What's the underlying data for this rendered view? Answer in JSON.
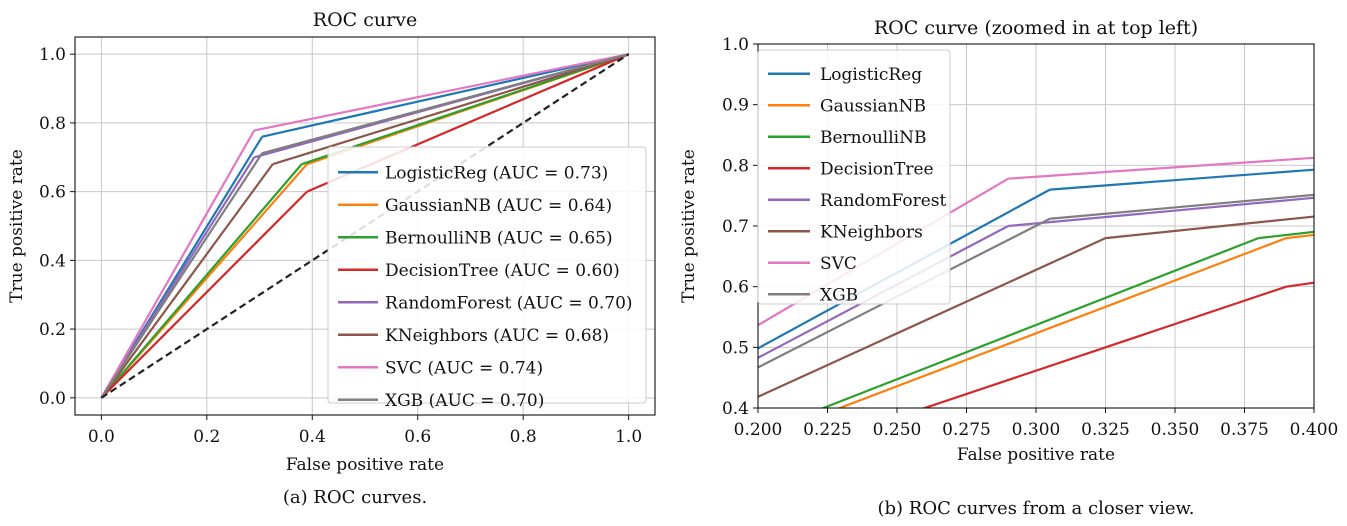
{
  "chart_data": [
    {
      "type": "line",
      "title": "ROC curve",
      "xlabel": "False positive rate",
      "ylabel": "True positive rate",
      "xlim": [
        -0.05,
        1.05
      ],
      "ylim": [
        -0.05,
        1.05
      ],
      "xticks": [
        "0.0",
        "0.2",
        "0.4",
        "0.6",
        "0.8",
        "1.0"
      ],
      "yticks": [
        "0.0",
        "0.2",
        "0.4",
        "0.6",
        "0.8",
        "1.0"
      ],
      "grid": true,
      "legend_position": "lower-right",
      "caption": "(a) ROC curves.",
      "series": [
        {
          "name": "LogisticReg (AUC = 0.73)",
          "color": "#1f77b4",
          "points": [
            [
              0,
              0
            ],
            [
              0.305,
              0.76
            ],
            [
              1,
              1
            ]
          ]
        },
        {
          "name": "GaussianNB (AUC = 0.64)",
          "color": "#ff7f0e",
          "points": [
            [
              0,
              0
            ],
            [
              0.39,
              0.68
            ],
            [
              1,
              1
            ]
          ]
        },
        {
          "name": "BernoulliNB (AUC = 0.65)",
          "color": "#2ca02c",
          "points": [
            [
              0,
              0
            ],
            [
              0.38,
              0.68
            ],
            [
              1,
              1
            ]
          ]
        },
        {
          "name": "DecisionTree (AUC = 0.60)",
          "color": "#d62728",
          "points": [
            [
              0,
              0
            ],
            [
              0.39,
              0.6
            ],
            [
              1,
              1
            ]
          ]
        },
        {
          "name": "RandomForest (AUC = 0.70)",
          "color": "#9467bd",
          "points": [
            [
              0,
              0
            ],
            [
              0.29,
              0.7
            ],
            [
              1,
              1
            ]
          ]
        },
        {
          "name": "KNeighbors (AUC = 0.68)",
          "color": "#8c564b",
          "points": [
            [
              0,
              0
            ],
            [
              0.325,
              0.68
            ],
            [
              1,
              1
            ]
          ]
        },
        {
          "name": "SVC (AUC = 0.74)",
          "color": "#e377c2",
          "points": [
            [
              0,
              0
            ],
            [
              0.29,
              0.778
            ],
            [
              1,
              1
            ]
          ]
        },
        {
          "name": "XGB (AUC = 0.70)",
          "color": "#7f7f7f",
          "points": [
            [
              0,
              0
            ],
            [
              0.305,
              0.712
            ],
            [
              1,
              1
            ]
          ]
        }
      ],
      "reference_line": {
        "color": "#222222",
        "points": [
          [
            0,
            0
          ],
          [
            1,
            1
          ]
        ],
        "dashed": true
      }
    },
    {
      "type": "line",
      "title": "ROC curve (zoomed in at top left)",
      "xlabel": "False positive rate",
      "ylabel": "True positive rate",
      "xlim": [
        0.2,
        0.4
      ],
      "ylim": [
        0.4,
        1.0
      ],
      "xticks": [
        "0.200",
        "0.225",
        "0.250",
        "0.275",
        "0.300",
        "0.325",
        "0.350",
        "0.375",
        "0.400"
      ],
      "yticks": [
        "0.4",
        "0.5",
        "0.6",
        "0.7",
        "0.8",
        "0.9",
        "1.0"
      ],
      "grid": true,
      "legend_position": "top-left",
      "caption": "(b) ROC curves from a closer view.",
      "series": [
        {
          "name": "LogisticReg",
          "color": "#1f77b4"
        },
        {
          "name": "GaussianNB",
          "color": "#ff7f0e"
        },
        {
          "name": "BernoulliNB",
          "color": "#2ca02c"
        },
        {
          "name": "DecisionTree",
          "color": "#d62728"
        },
        {
          "name": "RandomForest",
          "color": "#9467bd"
        },
        {
          "name": "KNeighbors",
          "color": "#8c564b"
        },
        {
          "name": "SVC",
          "color": "#e377c2"
        },
        {
          "name": "XGB",
          "color": "#7f7f7f"
        }
      ]
    }
  ]
}
